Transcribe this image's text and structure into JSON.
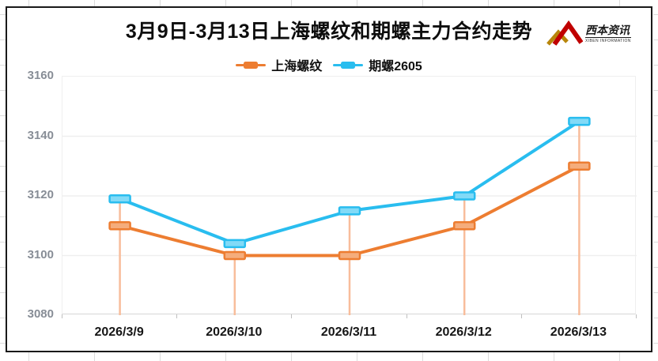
{
  "title": "3月9日-3月13日上海螺纹和期螺主力合约走势",
  "logo": {
    "brand": "西本资讯",
    "subtitle": "XIBEN INFORMATION"
  },
  "chart_data": {
    "type": "line",
    "title": "3月9日-3月13日上海螺纹和期螺主力合约走势",
    "categories": [
      "2026/3/9",
      "2026/3/10",
      "2026/3/11",
      "2026/3/12",
      "2026/3/13"
    ],
    "series": [
      {
        "name": "上海螺纹",
        "color": "#ED7D31",
        "marker_fill": "#F5AD7C",
        "values": [
          3110,
          3100,
          3100,
          3110,
          3130
        ]
      },
      {
        "name": "期螺2605",
        "color": "#29BDEF",
        "marker_fill": "#82DAF7",
        "values": [
          3119,
          3104,
          3115,
          3120,
          3145
        ]
      }
    ],
    "ylim": [
      3080,
      3160
    ],
    "yticks": [
      "3160",
      "3140",
      "3120",
      "3100",
      "3080"
    ],
    "xlabel": "",
    "ylabel": "",
    "grid": true,
    "gridline_color": "#efefef",
    "axis_line_color": "#d6d6d6",
    "legend_position": "top-center",
    "drop_lines": true,
    "drop_line_color": "#F8BD9B"
  }
}
